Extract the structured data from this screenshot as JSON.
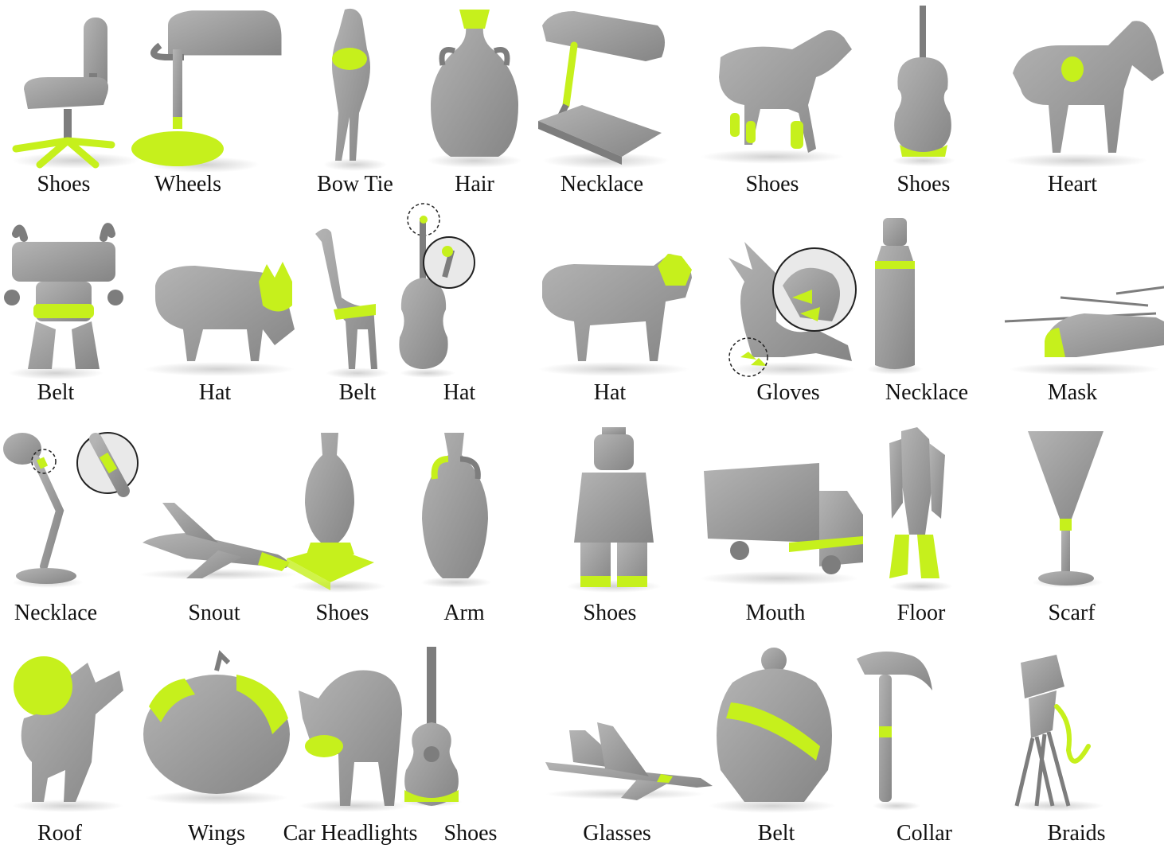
{
  "figure": {
    "colors": {
      "mesh": "#9b9b9b",
      "mesh_dark": "#7d7d7d",
      "highlight": "#c6f01c",
      "zoom_ring": "#222222"
    },
    "rows": [
      {
        "items": [
          {
            "object": "office chair",
            "label": "Shoes"
          },
          {
            "object": "desk lamp",
            "label": "Wheels"
          },
          {
            "object": "camel",
            "label": "Bow Tie"
          },
          {
            "object": "vase",
            "label": "Hair"
          },
          {
            "object": "banker lamp",
            "label": "Necklace"
          },
          {
            "object": "wolf",
            "label": "Shoes"
          },
          {
            "object": "violin",
            "label": "Shoes"
          },
          {
            "object": "donkey",
            "label": "Heart"
          }
        ]
      },
      {
        "items": [
          {
            "object": "robot table",
            "label": "Belt"
          },
          {
            "object": "pig",
            "label": "Hat"
          },
          {
            "object": "giraffe",
            "label": "Belt"
          },
          {
            "object": "cello",
            "label": "Hat",
            "zoom": true
          },
          {
            "object": "cow",
            "label": "Hat"
          },
          {
            "object": "dragon",
            "label": "Gloves",
            "zoom": true
          },
          {
            "object": "bottle",
            "label": "Necklace"
          },
          {
            "object": "helicopter",
            "label": "Mask"
          }
        ]
      },
      {
        "items": [
          {
            "object": "arm lamp",
            "label": "Necklace",
            "zoom": true
          },
          {
            "object": "airplane",
            "label": "Snout"
          },
          {
            "object": "urn",
            "label": "Shoes"
          },
          {
            "object": "amphora",
            "label": "Arm"
          },
          {
            "object": "lego figure",
            "label": "Shoes"
          },
          {
            "object": "truck",
            "label": "Mouth"
          },
          {
            "object": "robot",
            "label": "Floor"
          },
          {
            "object": "goblet",
            "label": "Scarf"
          }
        ]
      },
      {
        "items": [
          {
            "object": "creature",
            "label": "Roof"
          },
          {
            "object": "pumpkin",
            "label": "Wings"
          },
          {
            "object": "hog",
            "label": "Car Headlights"
          },
          {
            "object": "guitar",
            "label": "Shoes"
          },
          {
            "object": "jet",
            "label": "Glasses"
          },
          {
            "object": "baymax",
            "label": "Belt"
          },
          {
            "object": "hammer",
            "label": "Collar"
          },
          {
            "object": "elephant sculpture",
            "label": "Braids"
          }
        ]
      }
    ]
  }
}
